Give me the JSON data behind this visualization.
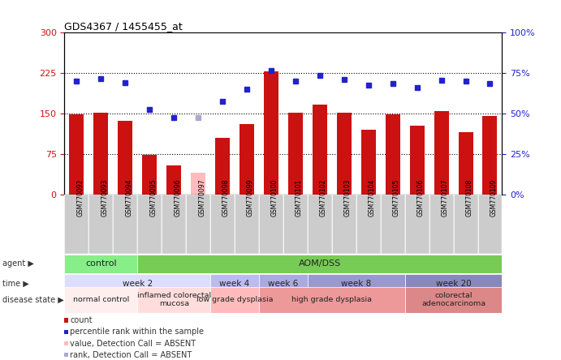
{
  "title": "GDS4367 / 1455455_at",
  "samples": [
    "GSM770092",
    "GSM770093",
    "GSM770094",
    "GSM770095",
    "GSM770096",
    "GSM770097",
    "GSM770098",
    "GSM770099",
    "GSM770100",
    "GSM770101",
    "GSM770102",
    "GSM770103",
    "GSM770104",
    "GSM770105",
    "GSM770106",
    "GSM770107",
    "GSM770108",
    "GSM770109"
  ],
  "bar_values": [
    148,
    151,
    137,
    73,
    53,
    40,
    105,
    130,
    228,
    151,
    167,
    152,
    120,
    148,
    127,
    155,
    115,
    145
  ],
  "bar_absent": [
    false,
    false,
    false,
    false,
    false,
    true,
    false,
    false,
    false,
    false,
    false,
    false,
    false,
    false,
    false,
    false,
    false,
    false
  ],
  "percentile_values": [
    210,
    215,
    207,
    157,
    143,
    143,
    172,
    195,
    230,
    210,
    220,
    213,
    203,
    205,
    198,
    212,
    210,
    205
  ],
  "percentile_absent": [
    false,
    false,
    false,
    false,
    false,
    true,
    false,
    false,
    false,
    false,
    false,
    false,
    false,
    false,
    false,
    false,
    false,
    false
  ],
  "ylim_left": [
    0,
    300
  ],
  "ylim_right": [
    0,
    100
  ],
  "yticks_left": [
    0,
    75,
    150,
    225,
    300
  ],
  "yticks_right": [
    0,
    25,
    50,
    75,
    100
  ],
  "hlines": [
    75,
    150,
    225
  ],
  "bar_color": "#cc1111",
  "bar_absent_color": "#ffbbbb",
  "dot_color": "#2222cc",
  "dot_absent_color": "#aaaacc",
  "agent_groups": [
    {
      "label": "control",
      "start": 0,
      "end": 3,
      "color": "#88ee88"
    },
    {
      "label": "AOM/DSS",
      "start": 3,
      "end": 18,
      "color": "#77cc55"
    }
  ],
  "time_groups": [
    {
      "label": "week 2",
      "start": 0,
      "end": 6,
      "color": "#ddddff"
    },
    {
      "label": "week 4",
      "start": 6,
      "end": 8,
      "color": "#bbbbee"
    },
    {
      "label": "week 6",
      "start": 8,
      "end": 10,
      "color": "#aaaadd"
    },
    {
      "label": "week 8",
      "start": 10,
      "end": 14,
      "color": "#9999cc"
    },
    {
      "label": "week 20",
      "start": 14,
      "end": 18,
      "color": "#8888bb"
    }
  ],
  "disease_groups": [
    {
      "label": "normal control",
      "start": 0,
      "end": 3,
      "color": "#ffeeee"
    },
    {
      "label": "inflamed colorectal\nmucosa",
      "start": 3,
      "end": 6,
      "color": "#ffdddd"
    },
    {
      "label": "low grade dysplasia",
      "start": 6,
      "end": 8,
      "color": "#ffbbbb"
    },
    {
      "label": "high grade dysplasia",
      "start": 8,
      "end": 14,
      "color": "#ee9999"
    },
    {
      "label": "colorectal\nadenocarcinoma",
      "start": 14,
      "end": 18,
      "color": "#dd8888"
    }
  ],
  "legend_items": [
    {
      "color": "#cc1111",
      "label": "count"
    },
    {
      "color": "#2222cc",
      "label": "percentile rank within the sample"
    },
    {
      "color": "#ffbbbb",
      "label": "value, Detection Call = ABSENT"
    },
    {
      "color": "#aaaacc",
      "label": "rank, Detection Call = ABSENT"
    }
  ]
}
